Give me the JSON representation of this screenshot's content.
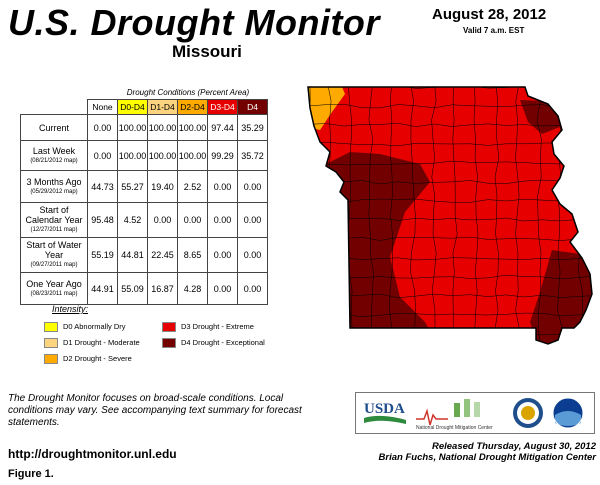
{
  "header": {
    "title": "U.S. Drought Monitor",
    "state": "Missouri",
    "date": "August 28, 2012",
    "valid": "Valid 7 a.m. EST"
  },
  "table": {
    "caption": "Drought Conditions (Percent Area)",
    "columns": [
      "None",
      "D0-D4",
      "D1-D4",
      "D2-D4",
      "D3-D4",
      "D4"
    ],
    "column_colors": [
      "#ffffff",
      "#ffff00",
      "#fcd37f",
      "#ffaa00",
      "#e60000",
      "#730000"
    ],
    "column_text_colors": [
      "#000000",
      "#000000",
      "#000000",
      "#000000",
      "#ffffff",
      "#ffffff"
    ],
    "rows": [
      {
        "label": "Current",
        "sub": "",
        "values": [
          "0.00",
          "100.00",
          "100.00",
          "100.00",
          "97.44",
          "35.29"
        ]
      },
      {
        "label": "Last Week",
        "sub": "(08/21/2012 map)",
        "values": [
          "0.00",
          "100.00",
          "100.00",
          "100.00",
          "99.29",
          "35.72"
        ]
      },
      {
        "label": "3 Months Ago",
        "sub": "(05/29/2012 map)",
        "values": [
          "44.73",
          "55.27",
          "19.40",
          "2.52",
          "0.00",
          "0.00"
        ]
      },
      {
        "label": "Start of Calendar Year",
        "sub": "(12/27/2011 map)",
        "values": [
          "95.48",
          "4.52",
          "0.00",
          "0.00",
          "0.00",
          "0.00"
        ]
      },
      {
        "label": "Start of Water Year",
        "sub": "(09/27/2011 map)",
        "values": [
          "55.19",
          "44.81",
          "22.45",
          "8.65",
          "0.00",
          "0.00"
        ]
      },
      {
        "label": "One Year Ago",
        "sub": "(08/23/2011 map)",
        "values": [
          "44.91",
          "55.09",
          "16.87",
          "4.28",
          "0.00",
          "0.00"
        ]
      }
    ]
  },
  "legend": {
    "title": "Intensity:",
    "items": [
      {
        "label": "D0 Abnormally Dry",
        "color": "#ffff00"
      },
      {
        "label": "D1 Drought - Moderate",
        "color": "#fcd37f"
      },
      {
        "label": "D2 Drought - Severe",
        "color": "#ffaa00"
      },
      {
        "label": "D3 Drought - Extreme",
        "color": "#e60000"
      },
      {
        "label": "D4 Drought - Exceptional",
        "color": "#730000"
      }
    ]
  },
  "map": {
    "region": "Missouri",
    "colors": {
      "d2": "#ffaa00",
      "d3": "#e60000",
      "d4": "#730000",
      "county_line": "#000000"
    }
  },
  "footer": {
    "note": "The Drought Monitor focuses on broad-scale conditions. Local conditions may vary. See accompanying text summary for forecast statements.",
    "url": "http://droughtmonitor.unl.edu",
    "figure": "Figure 1.",
    "released": "Released Thursday, August 30, 2012",
    "author": "Brian Fuchs, National Drought Mitigation Center"
  },
  "logos": {
    "usda": "USDA",
    "ndmc": "National Drought Mitigation Center"
  }
}
